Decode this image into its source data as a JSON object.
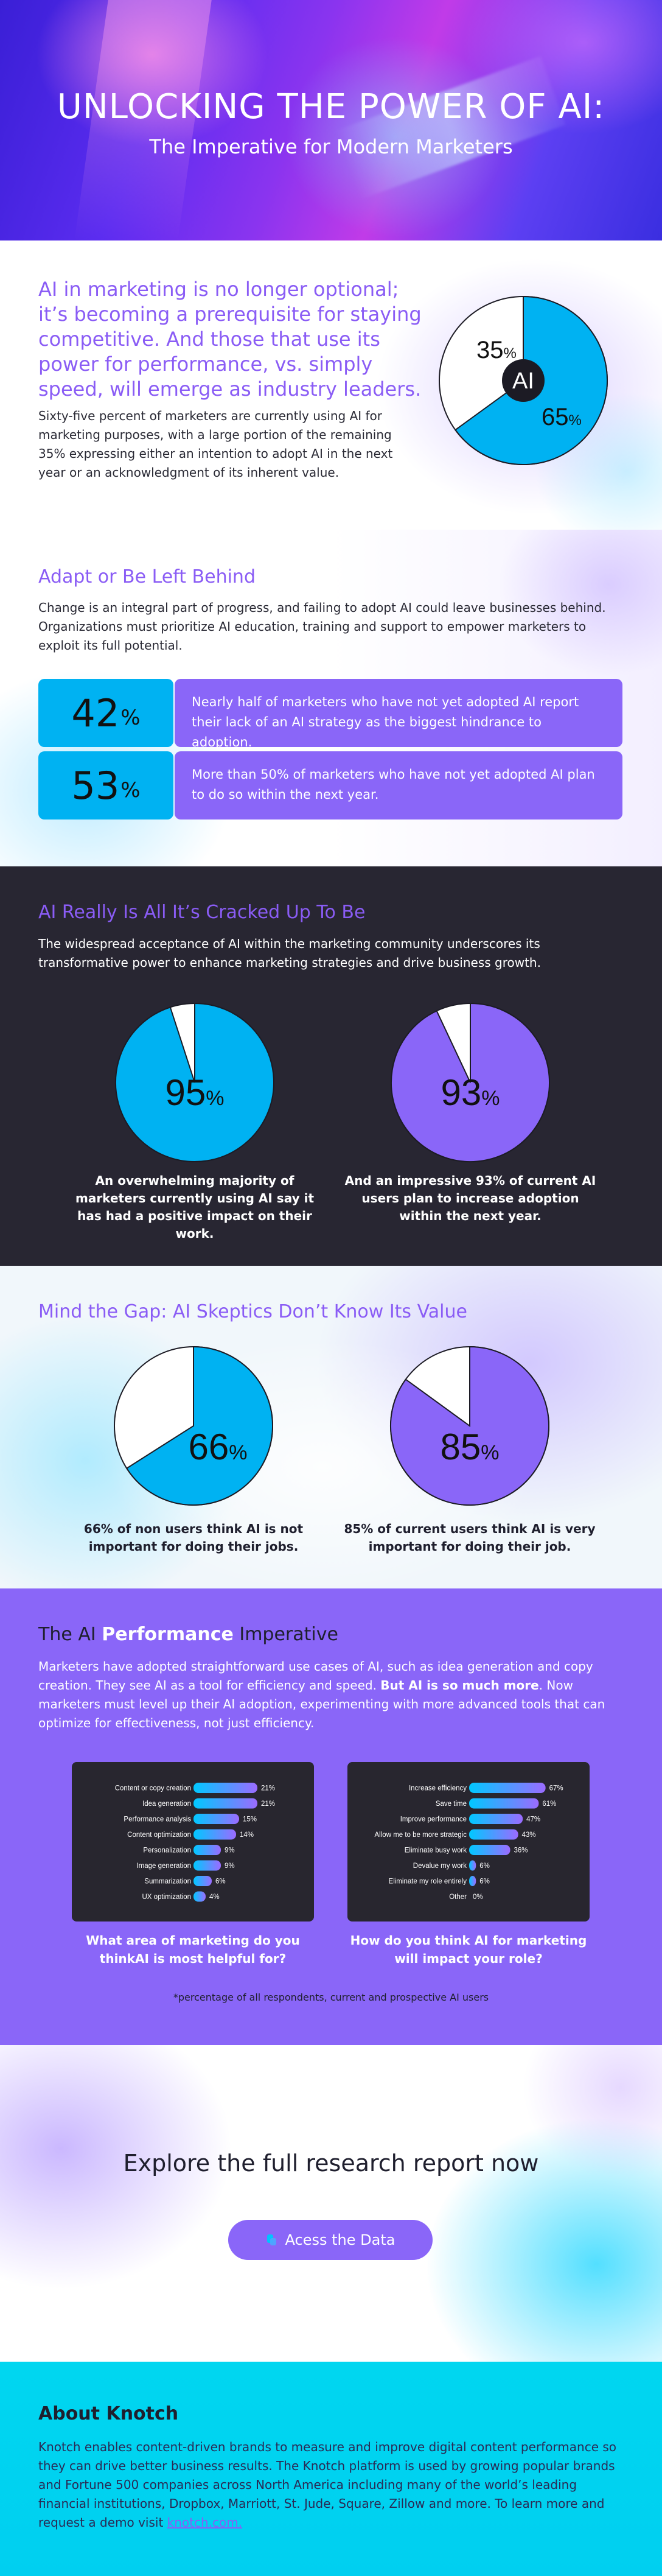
{
  "hero": {
    "title": "UNLOCKING THE POWER OF AI:",
    "subtitle": "The Imperative for Modern Marketers"
  },
  "intro": {
    "heading": "AI in marketing is no longer optional; it’s becoming a prerequisite for staying competitive. And those that use its power for performance, vs. simply speed, will emerge as industry leaders.",
    "body": "Sixty-five percent of marketers are currently using AI for marketing purposes, with a large portion of the remaining 35% expressing either an intention to adopt AI in the next year or an acknowledgment of its inherent value.",
    "chart_data": {
      "type": "pie",
      "center_label": "AI",
      "slices": [
        {
          "value": 65,
          "label": "65",
          "color": "#00b2f2"
        },
        {
          "value": 35,
          "label": "35",
          "color": "#ffffff"
        }
      ]
    }
  },
  "adapt": {
    "heading": "Adapt or Be Left Behind",
    "body": "Change is an integral part of progress, and failing to adopt AI could leave businesses behind. Organizations must prioritize AI education, training and support to empower marketers to exploit its full potential.",
    "stats": [
      {
        "value": "42",
        "unit": "%",
        "text": "Nearly half of marketers who have not yet adopted AI report their lack of an AI strategy as the biggest hindrance to adoption."
      },
      {
        "value": "53",
        "unit": "%",
        "text": "More than 50% of marketers who have not yet adopted AI plan to do so within the next year."
      }
    ]
  },
  "cracked": {
    "heading": "AI Really Is All It’s Cracked Up To Be",
    "body": "The widespread acceptance of AI within the marketing community underscores its transformative power to enhance marketing strategies and drive business growth.",
    "pies": [
      {
        "value": 95,
        "label": "95",
        "color": "#00b2f2",
        "caption": "An overwhelming majority of marketers currently using AI say it has had a positive impact on their work."
      },
      {
        "value": 93,
        "label": "93",
        "color": "#8a66f8",
        "caption": "And an impressive 93% of current AI users plan to increase adoption within the next year."
      }
    ]
  },
  "skeptics": {
    "heading": "Mind the Gap: AI Skeptics Don’t Know Its Value",
    "pies": [
      {
        "value": 66,
        "label": "66",
        "color": "#00b2f2",
        "caption": "66% of non users think AI is not important for doing their jobs."
      },
      {
        "value": 85,
        "label": "85",
        "color": "#8a66f8",
        "caption": "85% of current users think AI is very important for doing their job."
      }
    ]
  },
  "performance": {
    "heading_pre": "The AI ",
    "heading_highlight": "Performance",
    "heading_post": " Imperative",
    "body_pre": "Marketers have adopted straightforward use cases of AI, such as idea generation and copy creation. They see AI as a tool for efficiency and speed. ",
    "body_bold": "But AI is so much more",
    "body_post": ". Now marketers must level up their AI adoption, experimenting with more advanced tools that can optimize for effectiveness, not just efficiency.",
    "footnote": "*percentage of all respondents, current and prospective AI users",
    "chart_data": [
      {
        "type": "bar",
        "orientation": "horizontal",
        "title": "What area of marketing do you thinkAI is most helpful for?",
        "categories": [
          "Content or copy creation",
          "Idea generation",
          "Performance analysis",
          "Content optimization",
          "Personalization",
          "Image generation",
          "Summarization",
          "UX optimization"
        ],
        "values": [
          21,
          21,
          15,
          14,
          9,
          9,
          6,
          4
        ],
        "unit": "%",
        "xlim": [
          0,
          30
        ]
      },
      {
        "type": "bar",
        "orientation": "horizontal",
        "title": "How do you think AI for marketing will impact your role?",
        "categories": [
          "Increase efficiency",
          "Save time",
          "Improve performance",
          "Allow me to be more strategic",
          "Eliminate busy work",
          "Devalue my work",
          "Eliminate my role entirely",
          "Other"
        ],
        "values": [
          67,
          61,
          47,
          43,
          36,
          6,
          6,
          0
        ],
        "unit": "%",
        "xlim": [
          0,
          80
        ]
      }
    ]
  },
  "explore": {
    "title": "Explore the full research report now",
    "cta_label": "Acess the Data",
    "cta_icon": "document-icon"
  },
  "about": {
    "title": "About Knotch",
    "body": "Knotch enables content-driven brands to measure and improve digital content performance so they can drive better business results. The Knotch platform is used by growing popular brands and Fortune 500 companies across North America including many of the world’s leading financial institutions, Dropbox, Marriott, St. Jude, Square, Zillow and more. To learn more and request a demo visit ",
    "link_text": "knotch.com."
  }
}
